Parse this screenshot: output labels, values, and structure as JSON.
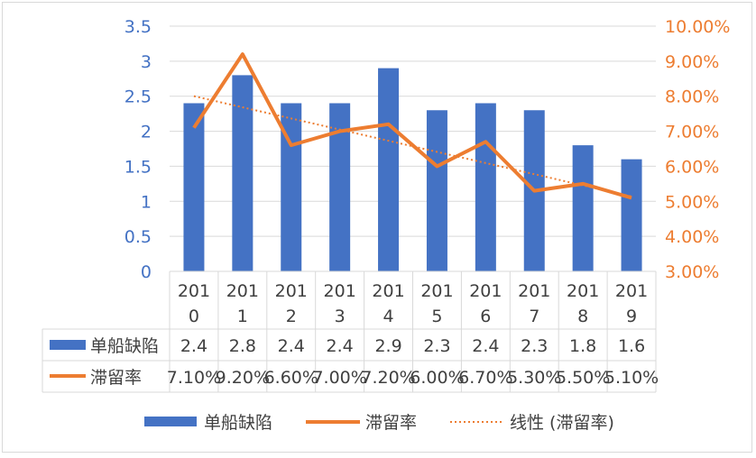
{
  "chart_data": {
    "type": "bar",
    "categories": [
      "2010",
      "2011",
      "2012",
      "2013",
      "2014",
      "2015",
      "2016",
      "2017",
      "2018",
      "2019"
    ],
    "category_labels": [
      [
        "201",
        "0"
      ],
      [
        "201",
        "1"
      ],
      [
        "201",
        "2"
      ],
      [
        "201",
        "3"
      ],
      [
        "201",
        "4"
      ],
      [
        "201",
        "5"
      ],
      [
        "201",
        "6"
      ],
      [
        "201",
        "7"
      ],
      [
        "201",
        "8"
      ],
      [
        "201",
        "9"
      ]
    ],
    "series": [
      {
        "name": "单船缺陷",
        "type": "bar",
        "axis": "left",
        "color": "#4472C4",
        "values": [
          2.4,
          2.8,
          2.4,
          2.4,
          2.9,
          2.3,
          2.4,
          2.3,
          1.8,
          1.6
        ],
        "table_labels": [
          "2.4",
          "2.8",
          "2.4",
          "2.4",
          "2.9",
          "2.3",
          "2.4",
          "2.3",
          "1.8",
          "1.6"
        ]
      },
      {
        "name": "滞留率",
        "type": "line",
        "axis": "right",
        "color": "#ED7D31",
        "values": [
          7.1,
          9.2,
          6.6,
          7.0,
          7.2,
          6.0,
          6.7,
          5.3,
          5.5,
          5.1
        ],
        "table_labels": [
          "7.10%",
          "9.20%",
          "6.60%",
          "7.00%",
          "7.20%",
          "6.00%",
          "6.70%",
          "5.30%",
          "5.50%",
          "5.10%"
        ]
      }
    ],
    "trendline": {
      "name": "线性 (滞留率)",
      "of_series": "滞留率",
      "kind": "linear",
      "style": "dotted",
      "color": "#ED7D31"
    },
    "y_left": {
      "min": 0,
      "max": 3.5,
      "step": 0.5,
      "tick_labels": [
        "0",
        "0.5",
        "1",
        "1.5",
        "2",
        "2.5",
        "3",
        "3.5"
      ],
      "color": "#4472C4"
    },
    "y_right": {
      "min": 3,
      "max": 10,
      "step": 1,
      "tick_labels": [
        "3.00%",
        "4.00%",
        "5.00%",
        "6.00%",
        "7.00%",
        "8.00%",
        "9.00%",
        "10.00%"
      ],
      "color": "#ED7D31"
    },
    "grid": true,
    "data_table": true,
    "legend_position": "bottom",
    "legend": [
      "单船缺陷",
      "滞留率",
      "线性 (滞留率)"
    ]
  }
}
